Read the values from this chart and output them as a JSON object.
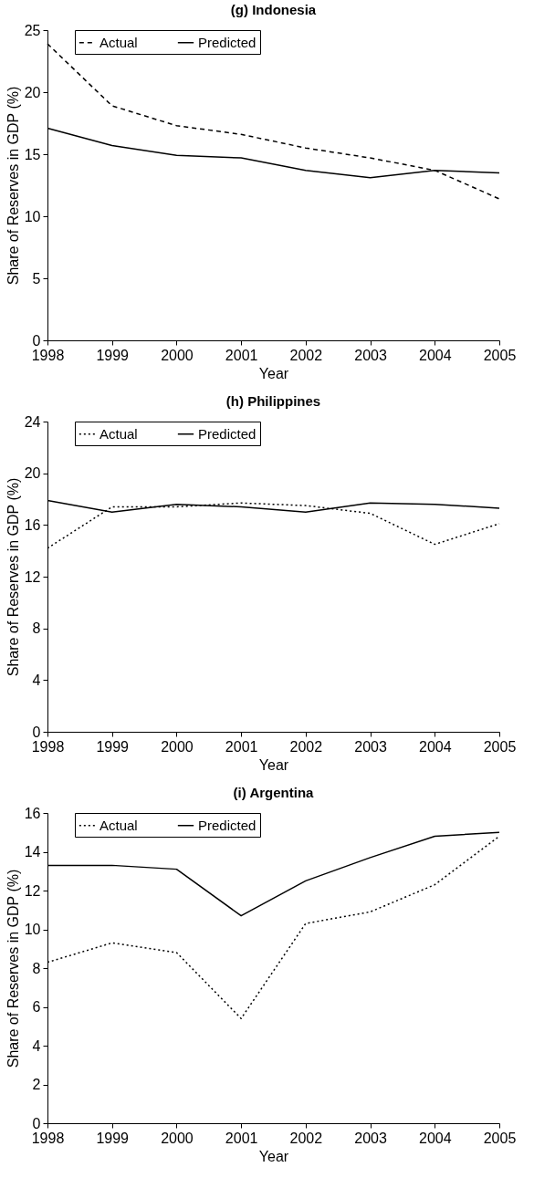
{
  "chart_data": [
    {
      "type": "line",
      "title": "(g) Indonesia",
      "xlabel": "Year",
      "ylabel": "Share of Reserves in GDP (%)",
      "x": [
        1998,
        1999,
        2000,
        2001,
        2002,
        2003,
        2004,
        2005
      ],
      "xlim": [
        1998,
        2005
      ],
      "xticks": [
        1998,
        1999,
        2000,
        2001,
        2002,
        2003,
        2004,
        2005
      ],
      "ylim": [
        0,
        25
      ],
      "yticks": [
        0,
        5,
        10,
        15,
        20,
        25
      ],
      "legend": "top left",
      "series": [
        {
          "name": "Actual",
          "color": "#000000",
          "line_style": "dashed",
          "values": [
            23.9,
            18.9,
            17.3,
            16.6,
            15.5,
            14.7,
            13.7,
            11.4
          ]
        },
        {
          "name": "Predicted",
          "color": "#000000",
          "line_style": "solid",
          "values": [
            17.1,
            15.7,
            14.9,
            14.7,
            13.7,
            13.1,
            13.7,
            13.5
          ]
        }
      ]
    },
    {
      "type": "line",
      "title": "(h) Philippines",
      "xlabel": "Year",
      "ylabel": "Share of Reserves in GDP (%)",
      "x": [
        1998,
        1999,
        2000,
        2001,
        2002,
        2003,
        2004,
        2005
      ],
      "xlim": [
        1998,
        2005
      ],
      "xticks": [
        1998,
        1999,
        2000,
        2001,
        2002,
        2003,
        2004,
        2005
      ],
      "ylim": [
        0,
        24
      ],
      "yticks": [
        0,
        4,
        8,
        12,
        16,
        20,
        24
      ],
      "legend": "top left",
      "series": [
        {
          "name": "Actual",
          "color": "#000000",
          "line_style": "dotted",
          "values": [
            14.2,
            17.4,
            17.4,
            17.7,
            17.5,
            16.9,
            14.5,
            16.1
          ]
        },
        {
          "name": "Predicted",
          "color": "#000000",
          "line_style": "solid",
          "values": [
            17.9,
            17.0,
            17.6,
            17.4,
            17.0,
            17.7,
            17.6,
            17.3
          ]
        }
      ]
    },
    {
      "type": "line",
      "title": "(i) Argentina",
      "xlabel": "Year",
      "ylabel": "Share of Reserves in GDP (%)",
      "x": [
        1998,
        1999,
        2000,
        2001,
        2002,
        2003,
        2004,
        2005
      ],
      "xlim": [
        1998,
        2005
      ],
      "xticks": [
        1998,
        1999,
        2000,
        2001,
        2002,
        2003,
        2004,
        2005
      ],
      "ylim": [
        0,
        16
      ],
      "yticks": [
        0,
        2,
        4,
        6,
        8,
        10,
        12,
        14,
        16
      ],
      "legend": "top left",
      "series": [
        {
          "name": "Actual",
          "color": "#000000",
          "line_style": "dotted",
          "values": [
            8.3,
            9.3,
            8.8,
            5.4,
            10.3,
            10.9,
            12.3,
            14.8
          ]
        },
        {
          "name": "Predicted",
          "color": "#000000",
          "line_style": "solid",
          "values": [
            13.3,
            13.3,
            13.1,
            10.7,
            12.5,
            13.7,
            14.8,
            15.0
          ]
        }
      ]
    }
  ]
}
